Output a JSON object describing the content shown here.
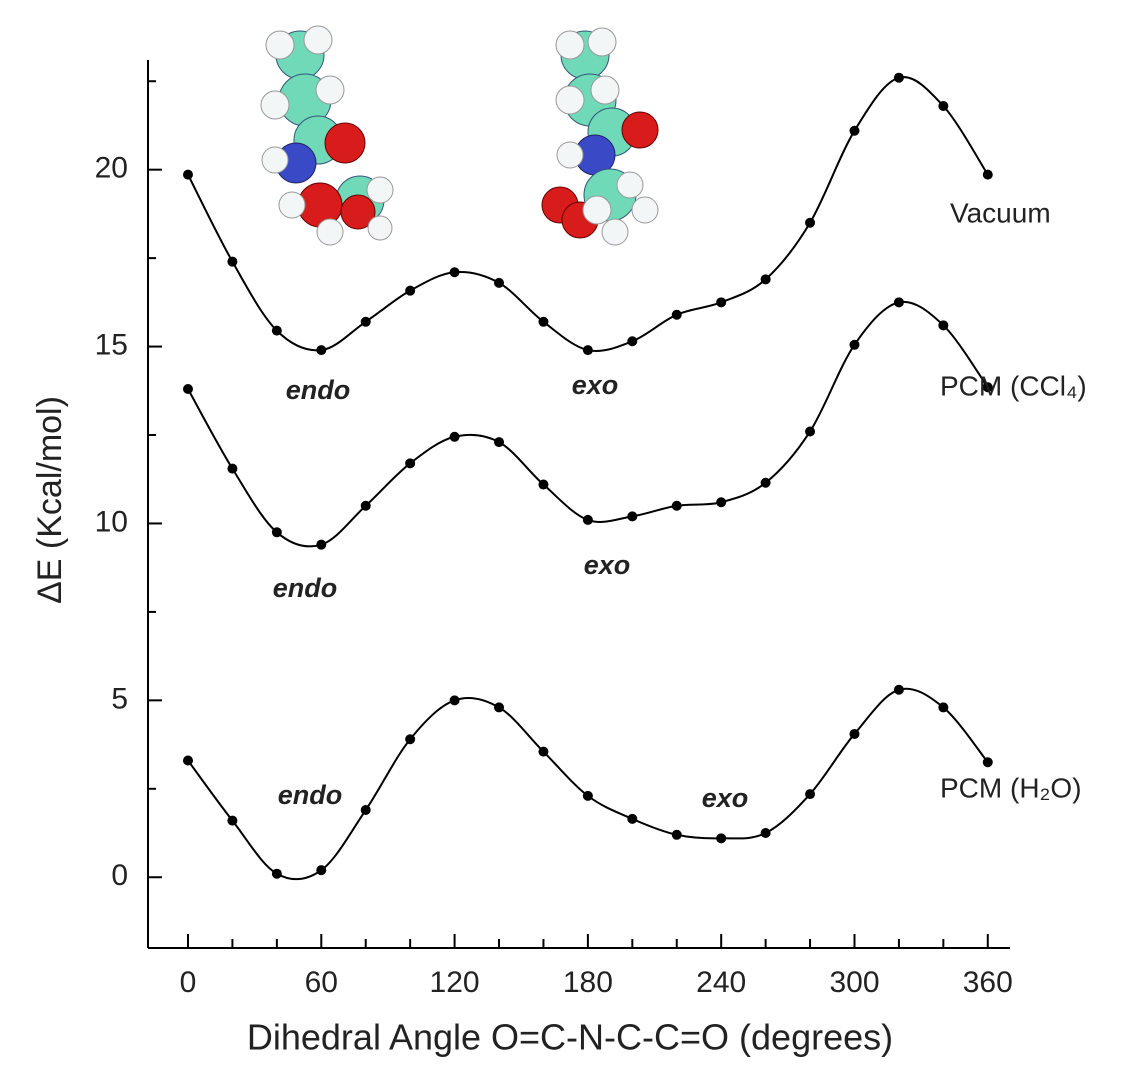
{
  "chart_data": {
    "type": "line",
    "x": [
      0,
      20,
      40,
      60,
      80,
      100,
      120,
      140,
      160,
      180,
      200,
      220,
      240,
      260,
      280,
      300,
      320,
      340,
      360
    ],
    "series": [
      {
        "name": "Vacuum",
        "color": "#000000",
        "values": [
          19.86,
          17.4,
          15.45,
          14.9,
          15.7,
          16.58,
          17.1,
          16.8,
          15.7,
          14.9,
          15.15,
          15.9,
          16.25,
          16.9,
          18.5,
          21.1,
          22.6,
          21.8,
          19.86
        ]
      },
      {
        "name": "PCM (CCl₄)",
        "color": "#000000",
        "values": [
          13.8,
          11.55,
          9.75,
          9.4,
          10.5,
          11.7,
          12.45,
          12.3,
          11.1,
          10.1,
          10.2,
          10.5,
          10.6,
          11.15,
          12.6,
          15.05,
          16.25,
          15.6,
          13.85
        ]
      },
      {
        "name": "PCM (H₂O)",
        "color": "#000000",
        "values": [
          3.3,
          1.6,
          0.1,
          0.2,
          1.9,
          3.9,
          5.0,
          4.8,
          3.55,
          2.3,
          1.65,
          1.2,
          1.1,
          1.25,
          2.35,
          4.05,
          5.3,
          4.8,
          3.25
        ]
      }
    ],
    "annotations": [
      "endo",
      "exo",
      "endo",
      "exo",
      "endo",
      "exo"
    ],
    "xlabel": "Dihedral Angle O=C-N-C-C=O (degrees)",
    "ylabel": "ΔE (Kcal/mol)",
    "xlim": [
      -18,
      370
    ],
    "ylim": [
      -2,
      23.1
    ],
    "xticks": [
      0,
      60,
      120,
      180,
      240,
      300,
      360
    ],
    "xminorticks": [
      20,
      40,
      80,
      100,
      140,
      160,
      200,
      220,
      260,
      280,
      320,
      340
    ],
    "yticks": [
      0,
      5,
      10,
      15,
      20
    ],
    "yminorticks": [
      2.5,
      7.5,
      12.5,
      17.5,
      22.5
    ]
  }
}
